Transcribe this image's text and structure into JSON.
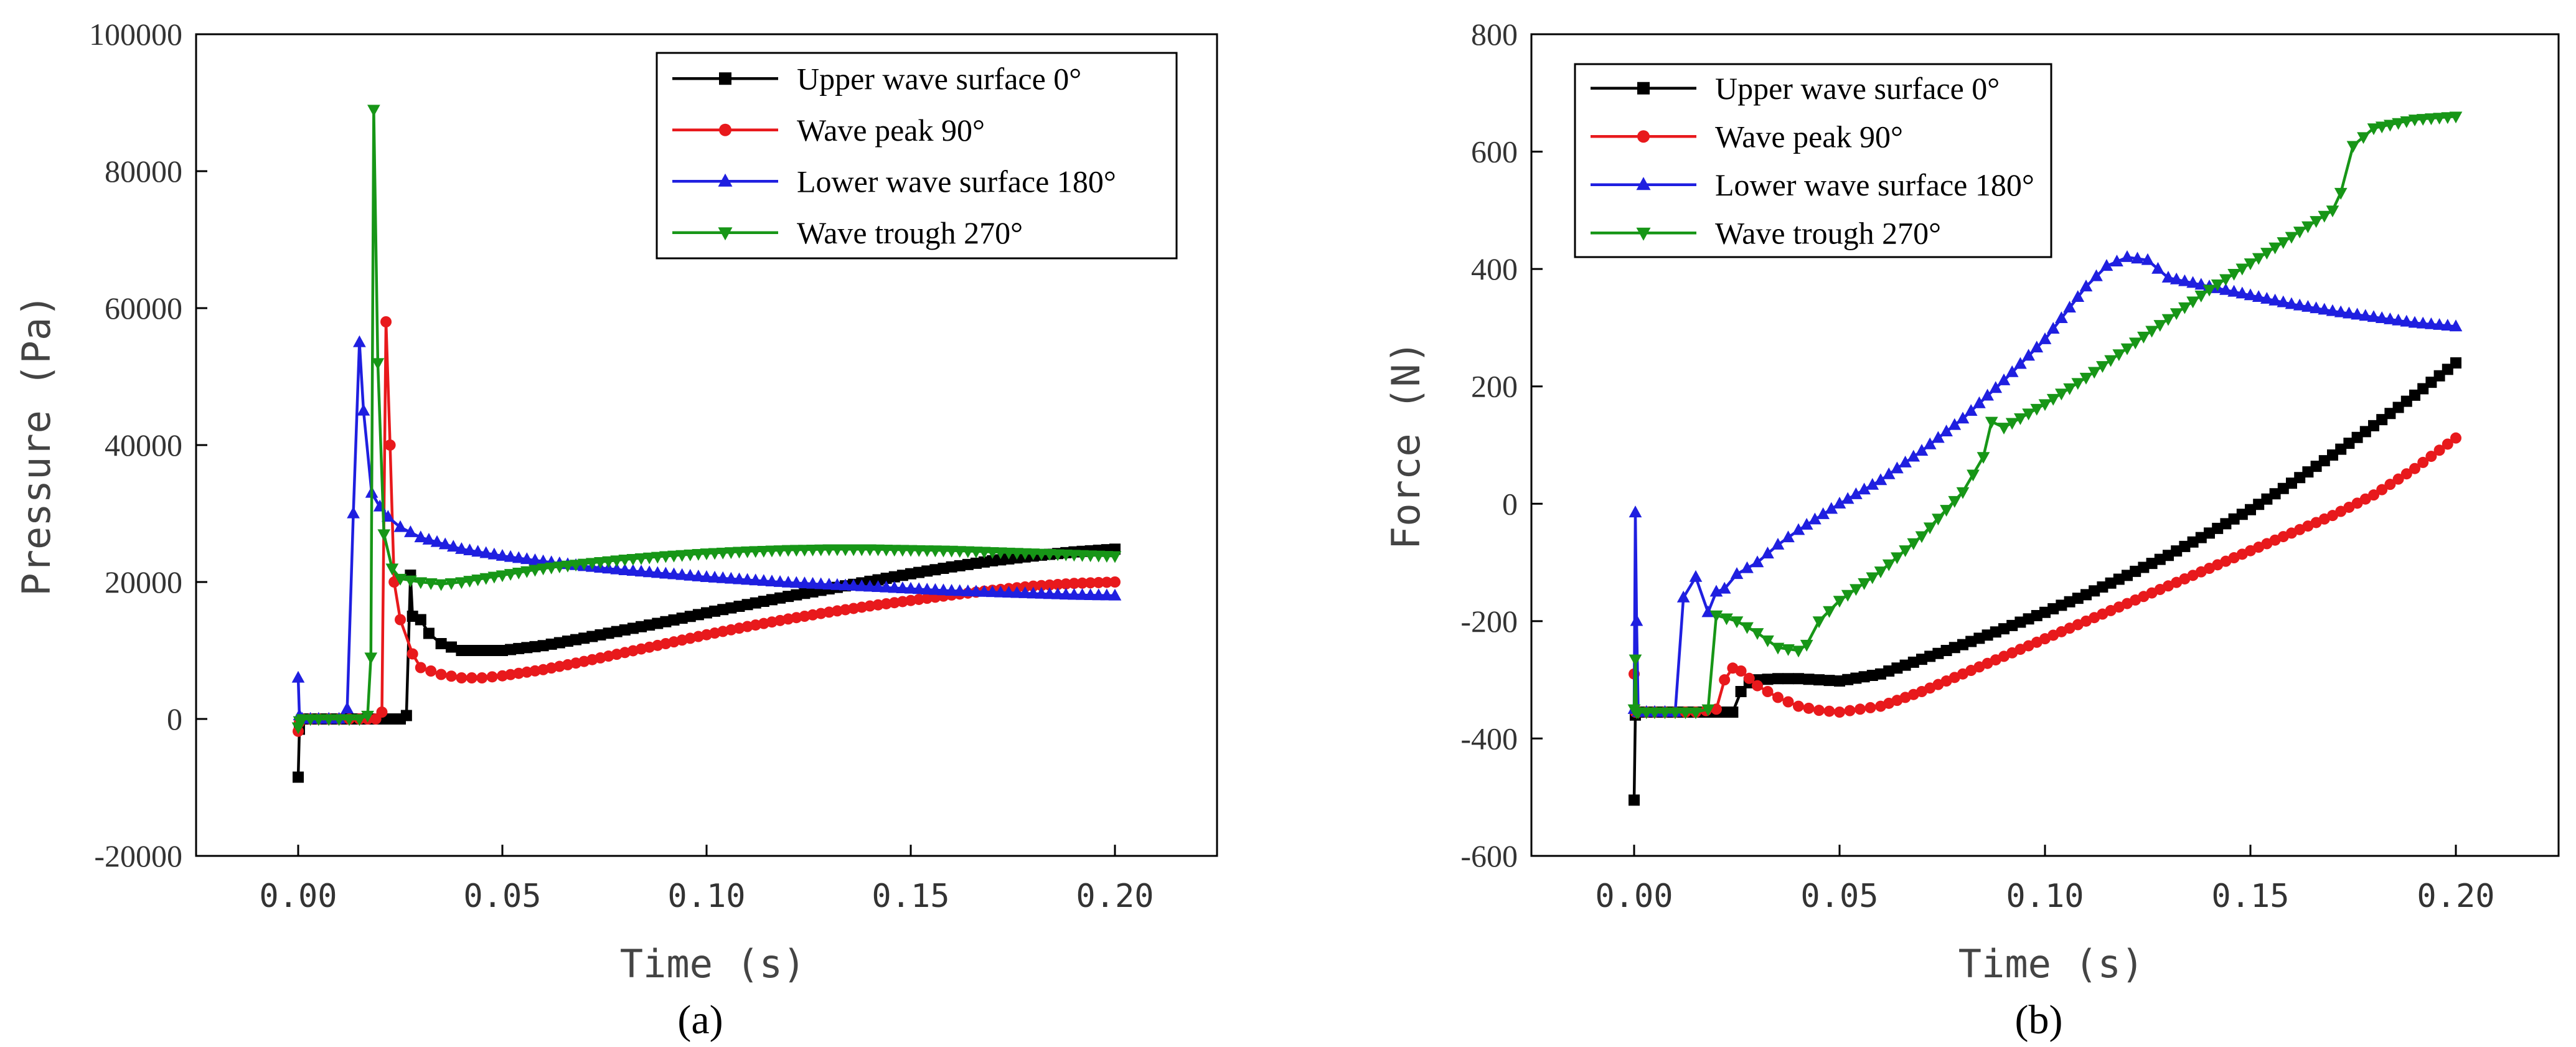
{
  "chart_data": [
    {
      "type": "line",
      "panel_label": "(a)",
      "xlabel": "Time (s)",
      "ylabel": "Pressure (Pa)",
      "xlim": [
        -0.025,
        0.225
      ],
      "ylim": [
        -20000,
        100000
      ],
      "xticks": [
        0.0,
        0.05,
        0.1,
        0.15,
        0.2
      ],
      "xtick_labels": [
        "0.00",
        "0.05",
        "0.10",
        "0.15",
        "0.20"
      ],
      "yticks": [
        -20000,
        0,
        20000,
        40000,
        60000,
        80000,
        100000
      ],
      "ytick_labels": [
        "-20000",
        "0",
        "20000",
        "40000",
        "60000",
        "80000",
        "100000"
      ],
      "legend_position": "top-right",
      "series": [
        {
          "name": "Upper wave surface 0°",
          "color": "#000000",
          "marker": "square",
          "x": [
            0.0,
            0.0003,
            0.001,
            0.005,
            0.01,
            0.015,
            0.02,
            0.025,
            0.0265,
            0.0275,
            0.028,
            0.03,
            0.032,
            0.035,
            0.04,
            0.05,
            0.06,
            0.07,
            0.08,
            0.09,
            0.1,
            0.11,
            0.12,
            0.13,
            0.14,
            0.15,
            0.16,
            0.17,
            0.18,
            0.19,
            0.2
          ],
          "y": [
            -8500,
            -1500,
            0,
            0,
            0,
            0,
            0,
            0,
            500,
            21000,
            15000,
            14500,
            12500,
            11000,
            10000,
            10000,
            10700,
            11800,
            13000,
            14200,
            15500,
            16700,
            17900,
            19000,
            20100,
            21200,
            22200,
            23100,
            23800,
            24400,
            24800
          ]
        },
        {
          "name": "Wave peak 90°",
          "color": "#e8191c",
          "marker": "circle",
          "x": [
            0.0,
            0.0003,
            0.001,
            0.005,
            0.01,
            0.015,
            0.019,
            0.0205,
            0.0215,
            0.0225,
            0.0235,
            0.025,
            0.028,
            0.03,
            0.035,
            0.04,
            0.045,
            0.05,
            0.06,
            0.07,
            0.08,
            0.09,
            0.1,
            0.11,
            0.12,
            0.13,
            0.14,
            0.15,
            0.16,
            0.17,
            0.18,
            0.19,
            0.2
          ],
          "y": [
            -1800,
            -500,
            0,
            0,
            0,
            0,
            0,
            1000,
            58000,
            40000,
            20000,
            14500,
            9500,
            7500,
            6500,
            6000,
            6000,
            6300,
            7200,
            8400,
            9700,
            11000,
            12300,
            13500,
            14600,
            15600,
            16500,
            17300,
            18100,
            18800,
            19400,
            19800,
            20000
          ]
        },
        {
          "name": "Lower wave surface 180°",
          "color": "#1f1fe0",
          "marker": "triangle-up",
          "x": [
            0.0,
            0.0003,
            0.001,
            0.005,
            0.01,
            0.012,
            0.0135,
            0.015,
            0.016,
            0.018,
            0.02,
            0.022,
            0.025,
            0.03,
            0.04,
            0.05,
            0.06,
            0.07,
            0.08,
            0.09,
            0.1,
            0.11,
            0.12,
            0.13,
            0.14,
            0.15,
            0.16,
            0.17,
            0.18,
            0.19,
            0.2
          ],
          "y": [
            6000,
            500,
            0,
            0,
            0,
            1500,
            30000,
            55000,
            45000,
            33000,
            31000,
            29500,
            28000,
            26500,
            24800,
            23800,
            23000,
            22300,
            21700,
            21200,
            20700,
            20300,
            19900,
            19600,
            19300,
            19000,
            18700,
            18500,
            18300,
            18100,
            18000
          ]
        },
        {
          "name": "Wave trough 270°",
          "color": "#179617",
          "marker": "triangle-down",
          "x": [
            0.0,
            0.0003,
            0.001,
            0.005,
            0.01,
            0.015,
            0.017,
            0.0178,
            0.0185,
            0.0195,
            0.021,
            0.023,
            0.025,
            0.03,
            0.035,
            0.04,
            0.05,
            0.06,
            0.07,
            0.08,
            0.09,
            0.1,
            0.11,
            0.12,
            0.13,
            0.14,
            0.15,
            0.16,
            0.17,
            0.18,
            0.19,
            0.2
          ],
          "y": [
            -1200,
            -300,
            0,
            0,
            0,
            0,
            500,
            9000,
            89000,
            52000,
            27000,
            22000,
            20500,
            20000,
            19700,
            20000,
            21000,
            22000,
            22700,
            23300,
            23800,
            24200,
            24500,
            24700,
            24800,
            24800,
            24700,
            24600,
            24400,
            24200,
            24000,
            23800
          ]
        }
      ]
    },
    {
      "type": "line",
      "panel_label": "(b)",
      "xlabel": "Time (s)",
      "ylabel": "Force (N)",
      "xlim": [
        -0.025,
        0.225
      ],
      "ylim": [
        -600,
        800
      ],
      "xticks": [
        0.0,
        0.05,
        0.1,
        0.15,
        0.2
      ],
      "xtick_labels": [
        "0.00",
        "0.05",
        "0.10",
        "0.15",
        "0.20"
      ],
      "yticks": [
        -600,
        -400,
        -200,
        0,
        200,
        400,
        600,
        800
      ],
      "ytick_labels": [
        "-600",
        "-400",
        "-200",
        "0",
        "200",
        "400",
        "600",
        "800"
      ],
      "legend_position": "top-left",
      "series": [
        {
          "name": "Upper wave surface 0°",
          "color": "#000000",
          "marker": "square",
          "x": [
            0.0,
            0.0003,
            0.001,
            0.005,
            0.01,
            0.015,
            0.02,
            0.024,
            0.026,
            0.028,
            0.03,
            0.035,
            0.04,
            0.045,
            0.05,
            0.06,
            0.07,
            0.08,
            0.09,
            0.1,
            0.11,
            0.12,
            0.13,
            0.14,
            0.15,
            0.16,
            0.17,
            0.18,
            0.19,
            0.2
          ],
          "y": [
            -505,
            -360,
            -355,
            -355,
            -355,
            -355,
            -355,
            -355,
            -320,
            -305,
            -300,
            -298,
            -298,
            -300,
            -302,
            -290,
            -265,
            -240,
            -213,
            -185,
            -155,
            -122,
            -88,
            -50,
            -10,
            35,
            83,
            133,
            185,
            240
          ]
        },
        {
          "name": "Wave peak 90°",
          "color": "#e8191c",
          "marker": "circle",
          "x": [
            0.0,
            0.0003,
            0.001,
            0.005,
            0.01,
            0.015,
            0.02,
            0.022,
            0.024,
            0.026,
            0.03,
            0.035,
            0.04,
            0.045,
            0.05,
            0.055,
            0.06,
            0.07,
            0.08,
            0.09,
            0.1,
            0.11,
            0.12,
            0.13,
            0.14,
            0.15,
            0.16,
            0.17,
            0.18,
            0.19,
            0.2
          ],
          "y": [
            -290,
            -355,
            -355,
            -355,
            -355,
            -355,
            -350,
            -300,
            -280,
            -285,
            -310,
            -330,
            -345,
            -352,
            -355,
            -350,
            -345,
            -320,
            -290,
            -260,
            -230,
            -200,
            -170,
            -140,
            -110,
            -80,
            -50,
            -20,
            15,
            60,
            112
          ]
        },
        {
          "name": "Lower wave surface 180°",
          "color": "#1f1fe0",
          "marker": "triangle-up",
          "x": [
            0.0,
            0.0003,
            0.0006,
            0.001,
            0.005,
            0.01,
            0.012,
            0.015,
            0.018,
            0.02,
            0.022,
            0.025,
            0.03,
            0.035,
            0.04,
            0.05,
            0.06,
            0.07,
            0.08,
            0.09,
            0.1,
            0.11,
            0.115,
            0.12,
            0.125,
            0.13,
            0.14,
            0.15,
            0.16,
            0.17,
            0.18,
            0.19,
            0.2
          ],
          "y": [
            -350,
            -15,
            -200,
            -355,
            -355,
            -355,
            -160,
            -125,
            -185,
            -150,
            -145,
            -120,
            -100,
            -70,
            -45,
            0,
            40,
            90,
            145,
            210,
            280,
            370,
            405,
            420,
            415,
            385,
            370,
            355,
            340,
            328,
            318,
            308,
            302
          ]
        },
        {
          "name": "Wave trough 270°",
          "color": "#179617",
          "marker": "triangle-down",
          "x": [
            0.0,
            0.0003,
            0.0006,
            0.001,
            0.005,
            0.01,
            0.015,
            0.018,
            0.02,
            0.025,
            0.03,
            0.035,
            0.04,
            0.042,
            0.045,
            0.05,
            0.06,
            0.07,
            0.08,
            0.085,
            0.087,
            0.09,
            0.1,
            0.11,
            0.12,
            0.13,
            0.14,
            0.15,
            0.16,
            0.17,
            0.172,
            0.175,
            0.18,
            0.19,
            0.2
          ],
          "y": [
            -350,
            -265,
            -355,
            -355,
            -355,
            -355,
            -355,
            -350,
            -190,
            -200,
            -220,
            -245,
            -250,
            -240,
            -200,
            -165,
            -115,
            -55,
            20,
            80,
            140,
            130,
            170,
            215,
            265,
            315,
            365,
            410,
            455,
            500,
            530,
            610,
            640,
            655,
            660
          ]
        }
      ]
    }
  ]
}
